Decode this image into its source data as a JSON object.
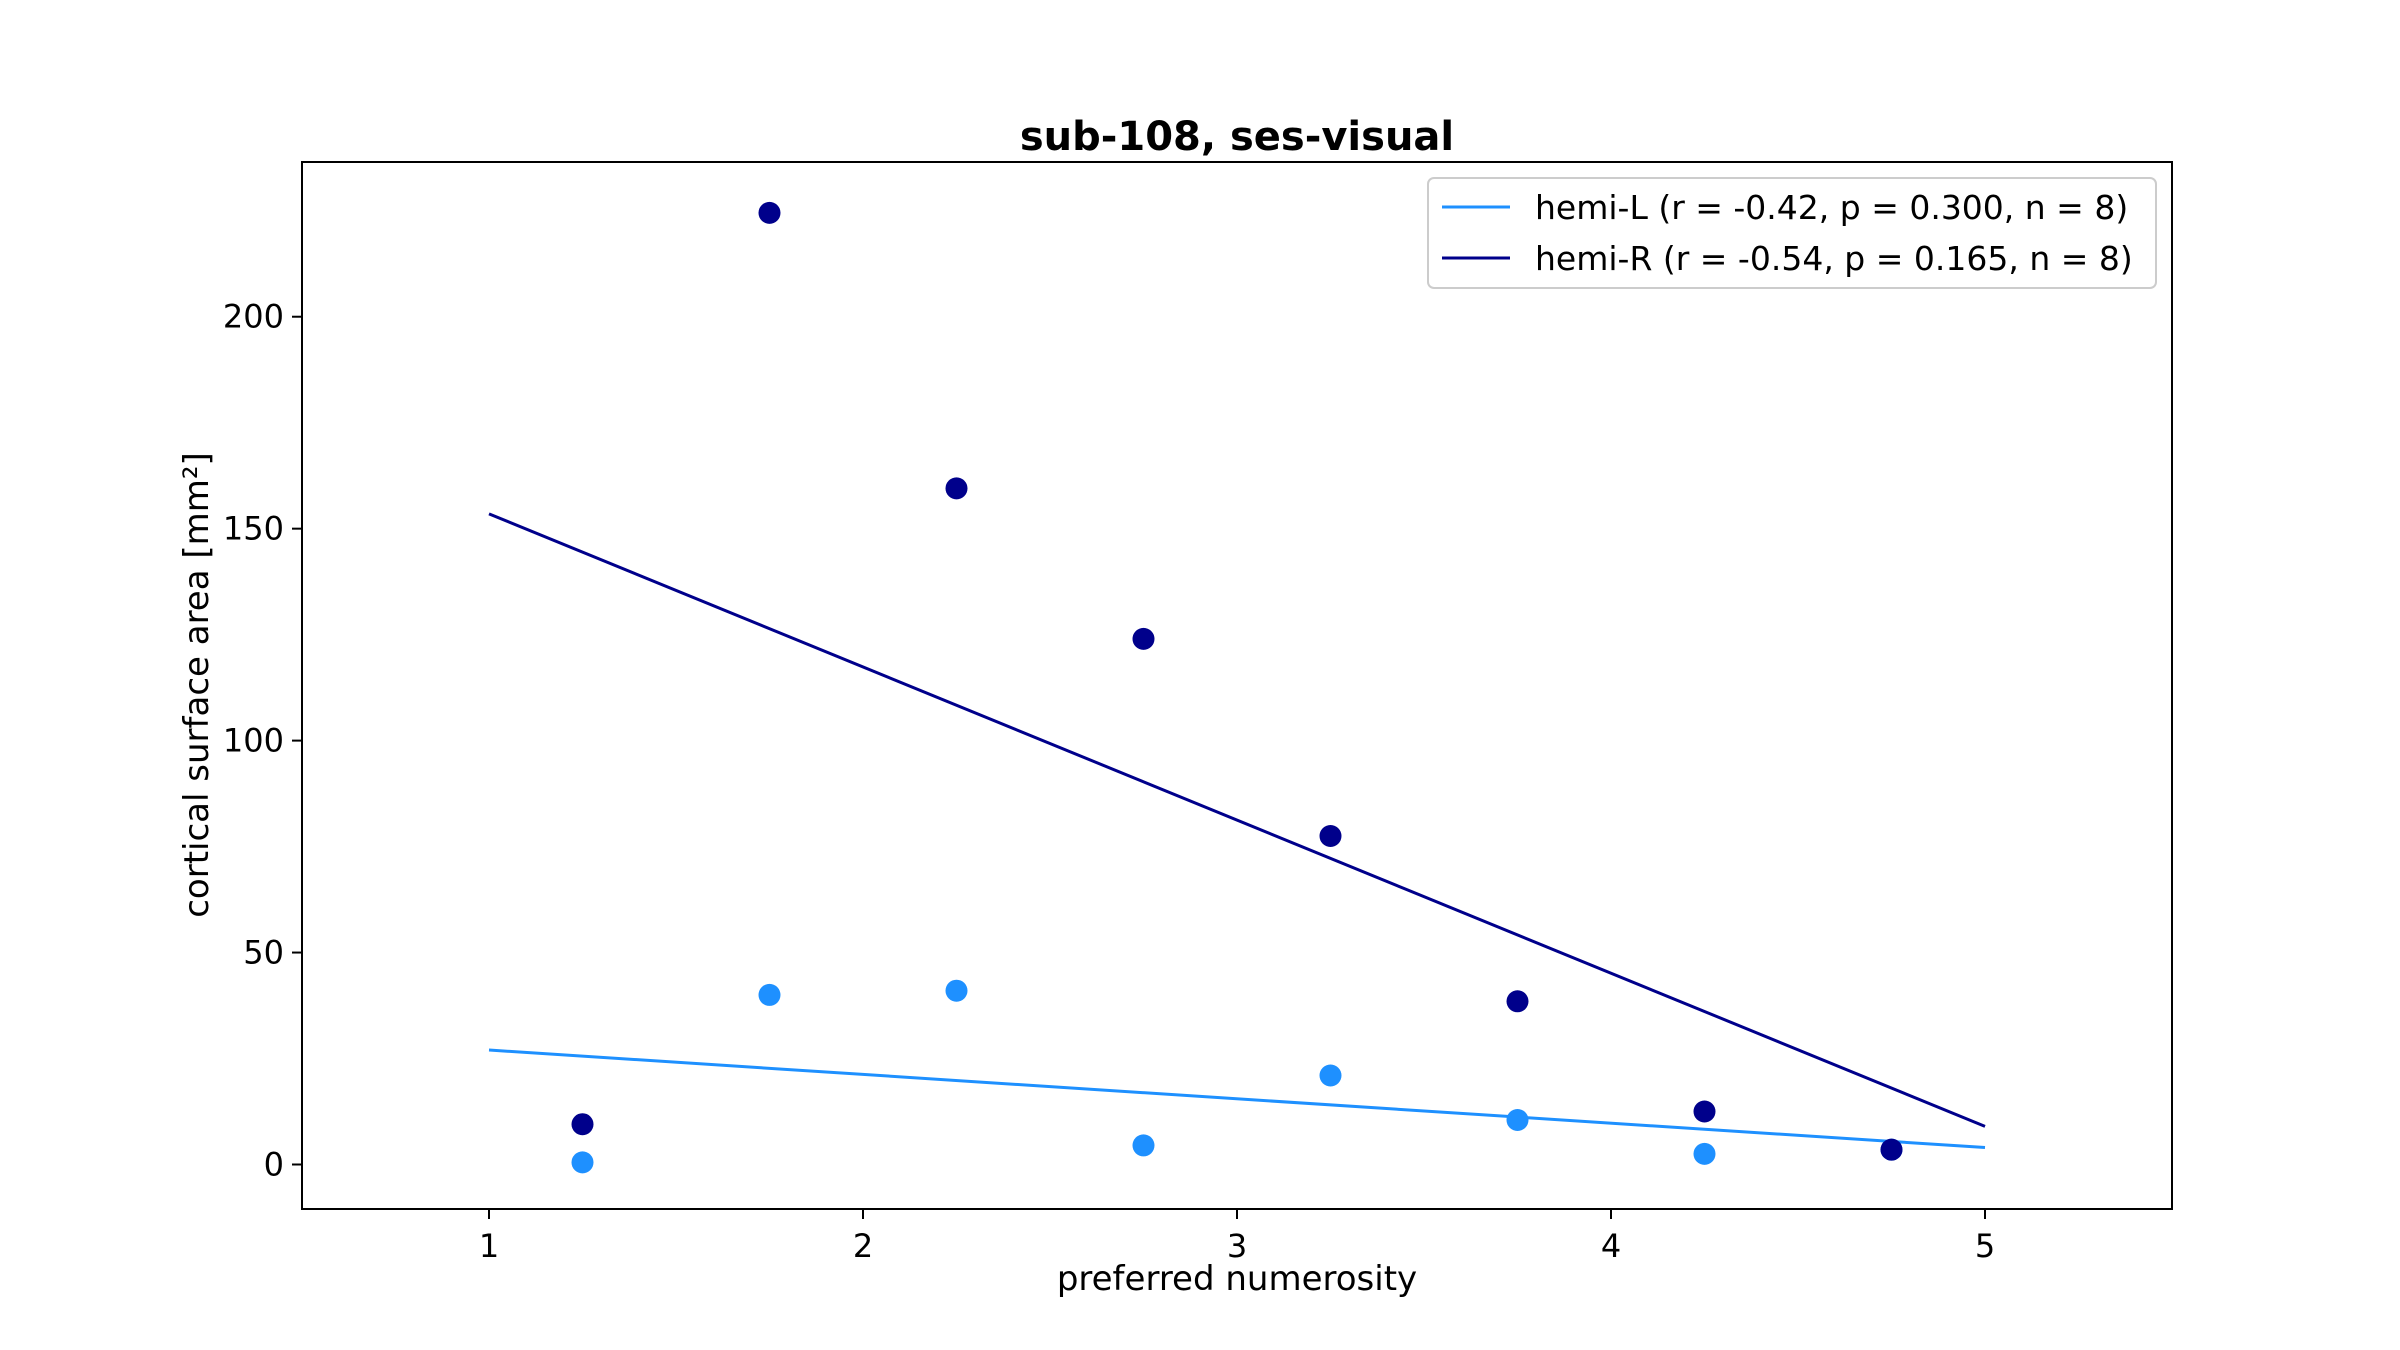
{
  "chart_data": {
    "type": "scatter",
    "title": "sub-108, ses-visual",
    "xlabel": "preferred numerosity",
    "ylabel": "cortical surface area [mm²]",
    "xlim": [
      0.5,
      5.5
    ],
    "ylim": [
      -10.5,
      236.5
    ],
    "xticks": [
      1,
      2,
      3,
      4,
      5
    ],
    "yticks": [
      0,
      50,
      100,
      150,
      200
    ],
    "grid": false,
    "legend_position": "top-right",
    "series": [
      {
        "name": "hemi-L (r = -0.42, p = 0.300, n = 8)",
        "color": "#1e90ff",
        "x": [
          1.25,
          1.75,
          2.25,
          2.75,
          3.25,
          3.75,
          4.25,
          4.75
        ],
        "y": [
          0.5,
          40,
          41,
          4.5,
          21,
          10.5,
          2.5,
          3.5
        ],
        "fit": {
          "x": [
            1,
            5
          ],
          "y": [
            27,
            4
          ]
        }
      },
      {
        "name": "hemi-R (r = -0.54, p = 0.165, n = 8)",
        "color": "#00008b",
        "x": [
          1.25,
          1.75,
          2.25,
          2.75,
          3.25,
          3.75,
          4.25,
          4.75
        ],
        "y": [
          9.5,
          224.5,
          159.5,
          124,
          77.5,
          38.5,
          12.5,
          3.5
        ],
        "fit": {
          "x": [
            1,
            5
          ],
          "y": [
            153.5,
            9
          ]
        }
      }
    ]
  }
}
